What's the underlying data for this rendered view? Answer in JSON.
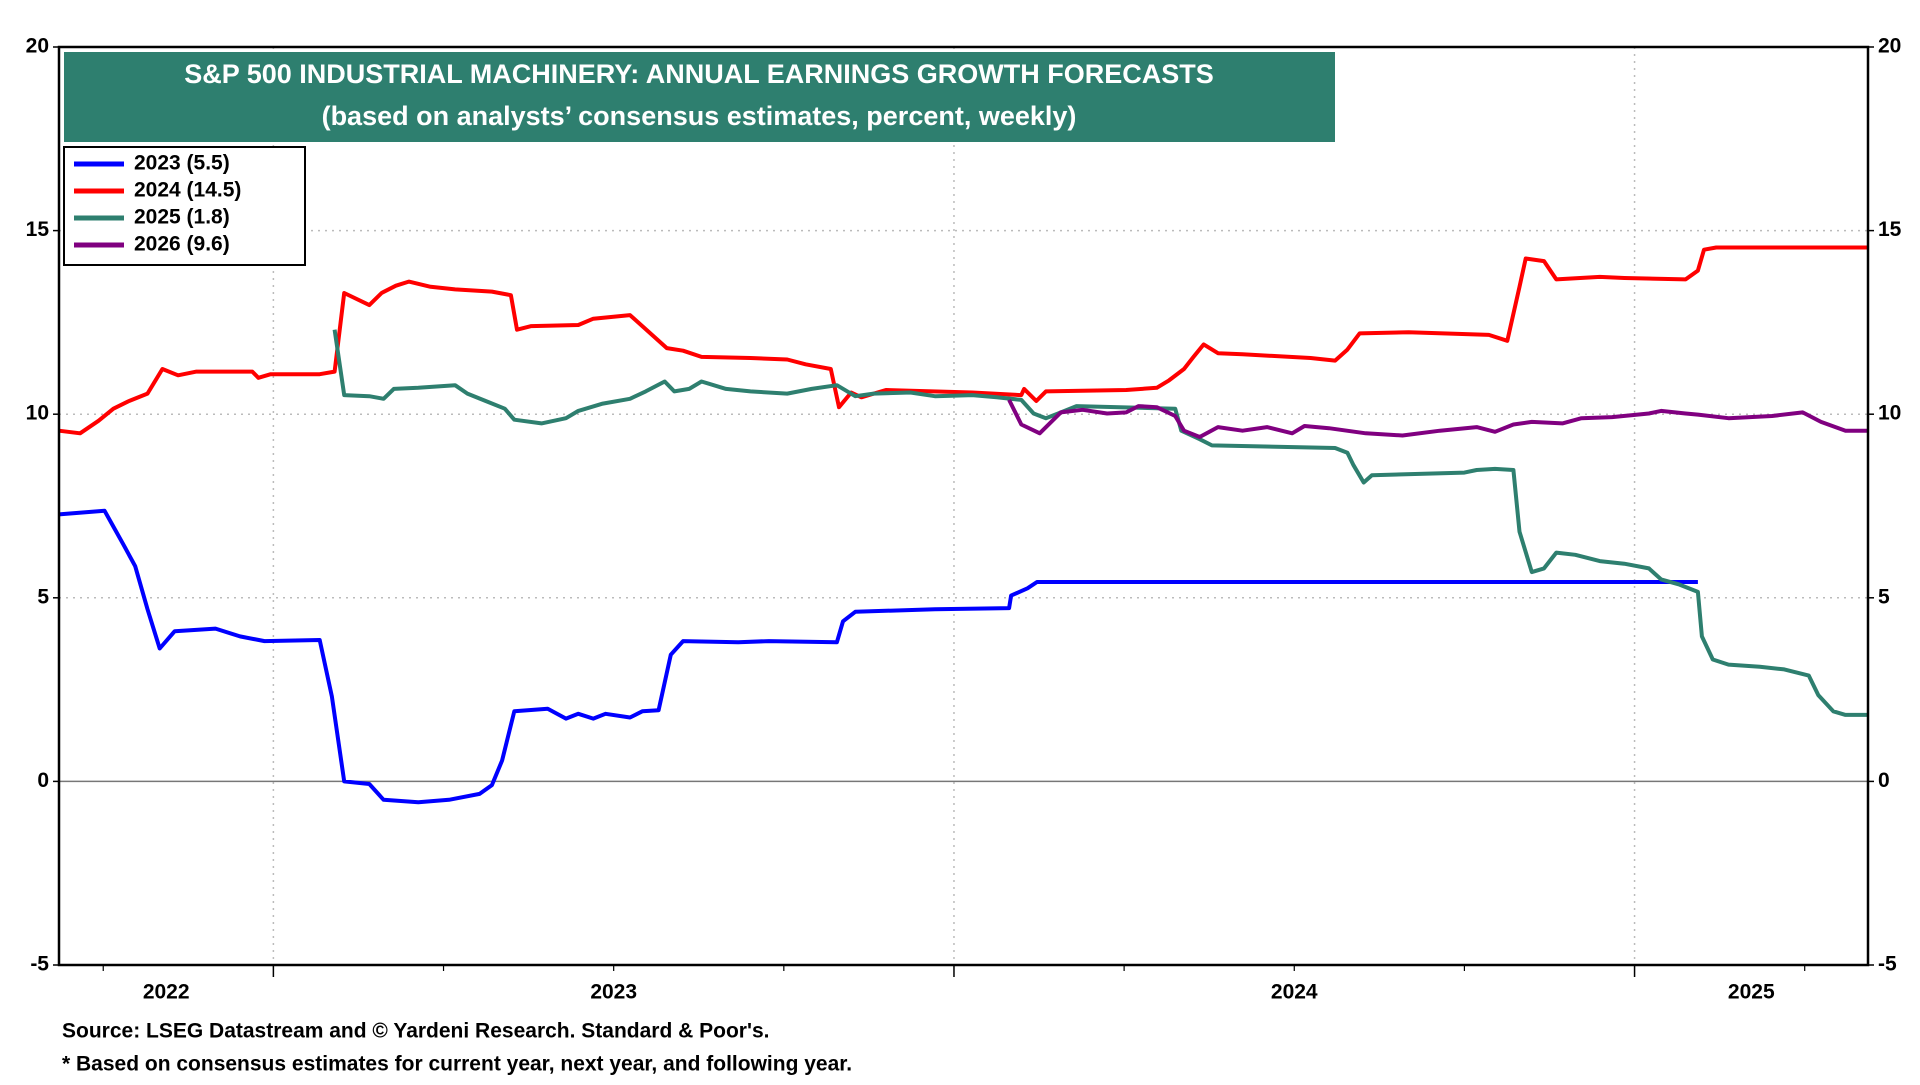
{
  "chart_data": {
    "type": "line",
    "title": "S&P 500 INDUSTRIAL MACHINERY: ANNUAL EARNINGS GROWTH FORECASTS",
    "subtitle": "(based on analysts’ consensus estimates, percent, weekly)",
    "source": "Source: LSEG Datastream and © Yardeni Research. Standard & Poor's.",
    "note": "* Based on consensus estimates for current year, next year, and following year.",
    "xlim": [
      2022.685,
      2025.343
    ],
    "xticks": [
      {
        "value": 2022,
        "label": "2022"
      },
      {
        "value": 2023,
        "label": "2023"
      },
      {
        "value": 2024,
        "label": "2024"
      },
      {
        "value": 2025,
        "label": "2025"
      }
    ],
    "ylim": [
      -5,
      20
    ],
    "yticks": [
      -5,
      0,
      5,
      10,
      15,
      20
    ],
    "y2lim": [
      -5,
      20
    ],
    "y2ticks": [
      -5,
      0,
      5,
      10,
      15,
      20
    ],
    "grid": true,
    "legend": "upper left",
    "series": [
      {
        "name": "2023 (5.5)",
        "color": "#0000ff",
        "x": [
          2022.685,
          2022.752,
          2022.765,
          2022.779,
          2022.797,
          2022.815,
          2022.833,
          2022.855,
          2022.915,
          2022.951,
          2022.987,
          2023.068,
          2023.086,
          2023.104,
          2023.141,
          2023.162,
          2023.213,
          2023.258,
          2023.303,
          2023.321,
          2023.336,
          2023.354,
          2023.403,
          2023.43,
          2023.448,
          2023.47,
          2023.488,
          2023.524,
          2023.542,
          2023.566,
          2023.584,
          2023.602,
          2023.683,
          2023.728,
          2023.828,
          2023.837,
          2023.855,
          2023.972,
          2024.081,
          2024.084,
          2024.108,
          2024.122,
          2025.093
        ],
        "values": [
          7.27,
          7.37,
          6.94,
          6.47,
          5.86,
          4.69,
          3.62,
          4.09,
          4.16,
          3.95,
          3.82,
          3.85,
          2.31,
          0.0,
          -0.07,
          -0.5,
          -0.57,
          -0.5,
          -0.34,
          -0.1,
          0.57,
          1.91,
          1.98,
          1.71,
          1.84,
          1.71,
          1.84,
          1.74,
          1.91,
          1.94,
          3.45,
          3.82,
          3.79,
          3.82,
          3.79,
          4.36,
          4.62,
          4.69,
          4.72,
          5.06,
          5.26,
          5.43,
          5.43
        ]
      },
      {
        "name": "2024 (14.5)",
        "color": "#ff0000",
        "x": [
          2022.685,
          2022.716,
          2022.743,
          2022.765,
          2022.788,
          2022.815,
          2022.837,
          2022.86,
          2022.887,
          2022.969,
          2022.978,
          2022.996,
          2023.068,
          2023.09,
          2023.104,
          2023.141,
          2023.159,
          2023.18,
          2023.199,
          2023.231,
          2023.267,
          2023.321,
          2023.349,
          2023.358,
          2023.379,
          2023.448,
          2023.47,
          2023.524,
          2023.578,
          2023.602,
          2023.629,
          2023.701,
          2023.755,
          2023.782,
          2023.819,
          2023.831,
          2023.849,
          2023.864,
          2023.9,
          2024.027,
          2024.099,
          2024.103,
          2024.121,
          2024.135,
          2024.253,
          2024.298,
          2024.316,
          2024.338,
          2024.352,
          2024.367,
          2024.388,
          2024.424,
          2024.524,
          2024.56,
          2024.578,
          2024.596,
          2024.668,
          2024.786,
          2024.813,
          2024.831,
          2024.84,
          2024.867,
          2024.885,
          2024.949,
          2024.985,
          2025.075,
          2025.093,
          2025.102,
          2025.12,
          2025.343
        ],
        "values": [
          9.55,
          9.48,
          9.82,
          10.15,
          10.36,
          10.56,
          11.23,
          11.06,
          11.16,
          11.16,
          10.99,
          11.09,
          11.09,
          11.16,
          13.3,
          12.97,
          13.3,
          13.5,
          13.61,
          13.47,
          13.4,
          13.34,
          13.24,
          12.3,
          12.4,
          12.43,
          12.6,
          12.7,
          11.8,
          11.73,
          11.56,
          11.53,
          11.49,
          11.36,
          11.23,
          10.19,
          10.59,
          10.46,
          10.66,
          10.59,
          10.52,
          10.69,
          10.36,
          10.62,
          10.66,
          10.72,
          10.92,
          11.23,
          11.56,
          11.9,
          11.66,
          11.63,
          11.53,
          11.46,
          11.76,
          12.2,
          12.23,
          12.16,
          12.0,
          13.47,
          14.24,
          14.17,
          13.67,
          13.74,
          13.71,
          13.67,
          13.91,
          14.48,
          14.54,
          14.54
        ]
      },
      {
        "name": "2025 (1.8)",
        "color": "#2e7f6f",
        "x": [
          2023.09,
          2023.104,
          2023.141,
          2023.162,
          2023.177,
          2023.213,
          2023.267,
          2023.285,
          2023.312,
          2023.34,
          2023.354,
          2023.394,
          2023.43,
          2023.448,
          2023.484,
          2023.524,
          2023.547,
          2023.575,
          2023.589,
          2023.611,
          2023.629,
          2023.665,
          2023.701,
          2023.755,
          2023.791,
          2023.828,
          2023.855,
          2023.882,
          2023.936,
          2023.972,
          2024.027,
          2024.063,
          2024.099,
          2024.117,
          2024.135,
          2024.153,
          2024.18,
          2024.325,
          2024.334,
          2024.361,
          2024.379,
          2024.56,
          2024.578,
          2024.587,
          2024.602,
          2024.614,
          2024.75,
          2024.768,
          2024.795,
          2024.822,
          2024.831,
          2024.849,
          2024.867,
          2024.885,
          2024.913,
          2024.949,
          2024.985,
          2025.021,
          2025.039,
          2025.066,
          2025.093,
          2025.099,
          2025.115,
          2025.138,
          2025.184,
          2025.22,
          2025.256,
          2025.27,
          2025.292,
          2025.31,
          2025.343
        ],
        "values": [
          12.3,
          10.52,
          10.49,
          10.42,
          10.69,
          10.72,
          10.79,
          10.56,
          10.36,
          10.15,
          9.85,
          9.75,
          9.89,
          10.09,
          10.29,
          10.42,
          10.62,
          10.89,
          10.62,
          10.69,
          10.89,
          10.69,
          10.62,
          10.56,
          10.69,
          10.79,
          10.49,
          10.56,
          10.59,
          10.49,
          10.52,
          10.46,
          10.39,
          10.02,
          9.89,
          10.02,
          10.22,
          10.15,
          9.55,
          9.32,
          9.15,
          9.08,
          8.95,
          8.61,
          8.14,
          8.34,
          8.41,
          8.48,
          8.51,
          8.48,
          6.8,
          5.7,
          5.8,
          6.23,
          6.17,
          6.0,
          5.93,
          5.8,
          5.5,
          5.36,
          5.16,
          3.95,
          3.32,
          3.18,
          3.12,
          3.05,
          2.88,
          2.35,
          1.91,
          1.81,
          1.81
        ]
      },
      {
        "name": "2026 (9.6)",
        "color": "#800080",
        "x": [
          2024.081,
          2024.099,
          2024.126,
          2024.157,
          2024.189,
          2024.225,
          2024.253,
          2024.271,
          2024.298,
          2024.325,
          2024.338,
          2024.361,
          2024.388,
          2024.424,
          2024.46,
          2024.497,
          2024.515,
          2024.551,
          2024.605,
          2024.659,
          2024.714,
          2024.768,
          2024.795,
          2024.822,
          2024.849,
          2024.894,
          2024.922,
          2024.967,
          2025.021,
          2025.039,
          2025.075,
          2025.093,
          2025.138,
          2025.202,
          2025.247,
          2025.274,
          2025.31,
          2025.343
        ],
        "values": [
          10.39,
          9.72,
          9.48,
          10.05,
          10.12,
          10.02,
          10.05,
          10.22,
          10.19,
          9.95,
          9.55,
          9.38,
          9.65,
          9.55,
          9.65,
          9.48,
          9.68,
          9.62,
          9.48,
          9.42,
          9.55,
          9.65,
          9.52,
          9.72,
          9.79,
          9.75,
          9.89,
          9.92,
          10.02,
          10.09,
          10.02,
          9.99,
          9.89,
          9.95,
          10.05,
          9.79,
          9.55,
          9.55
        ]
      }
    ]
  }
}
